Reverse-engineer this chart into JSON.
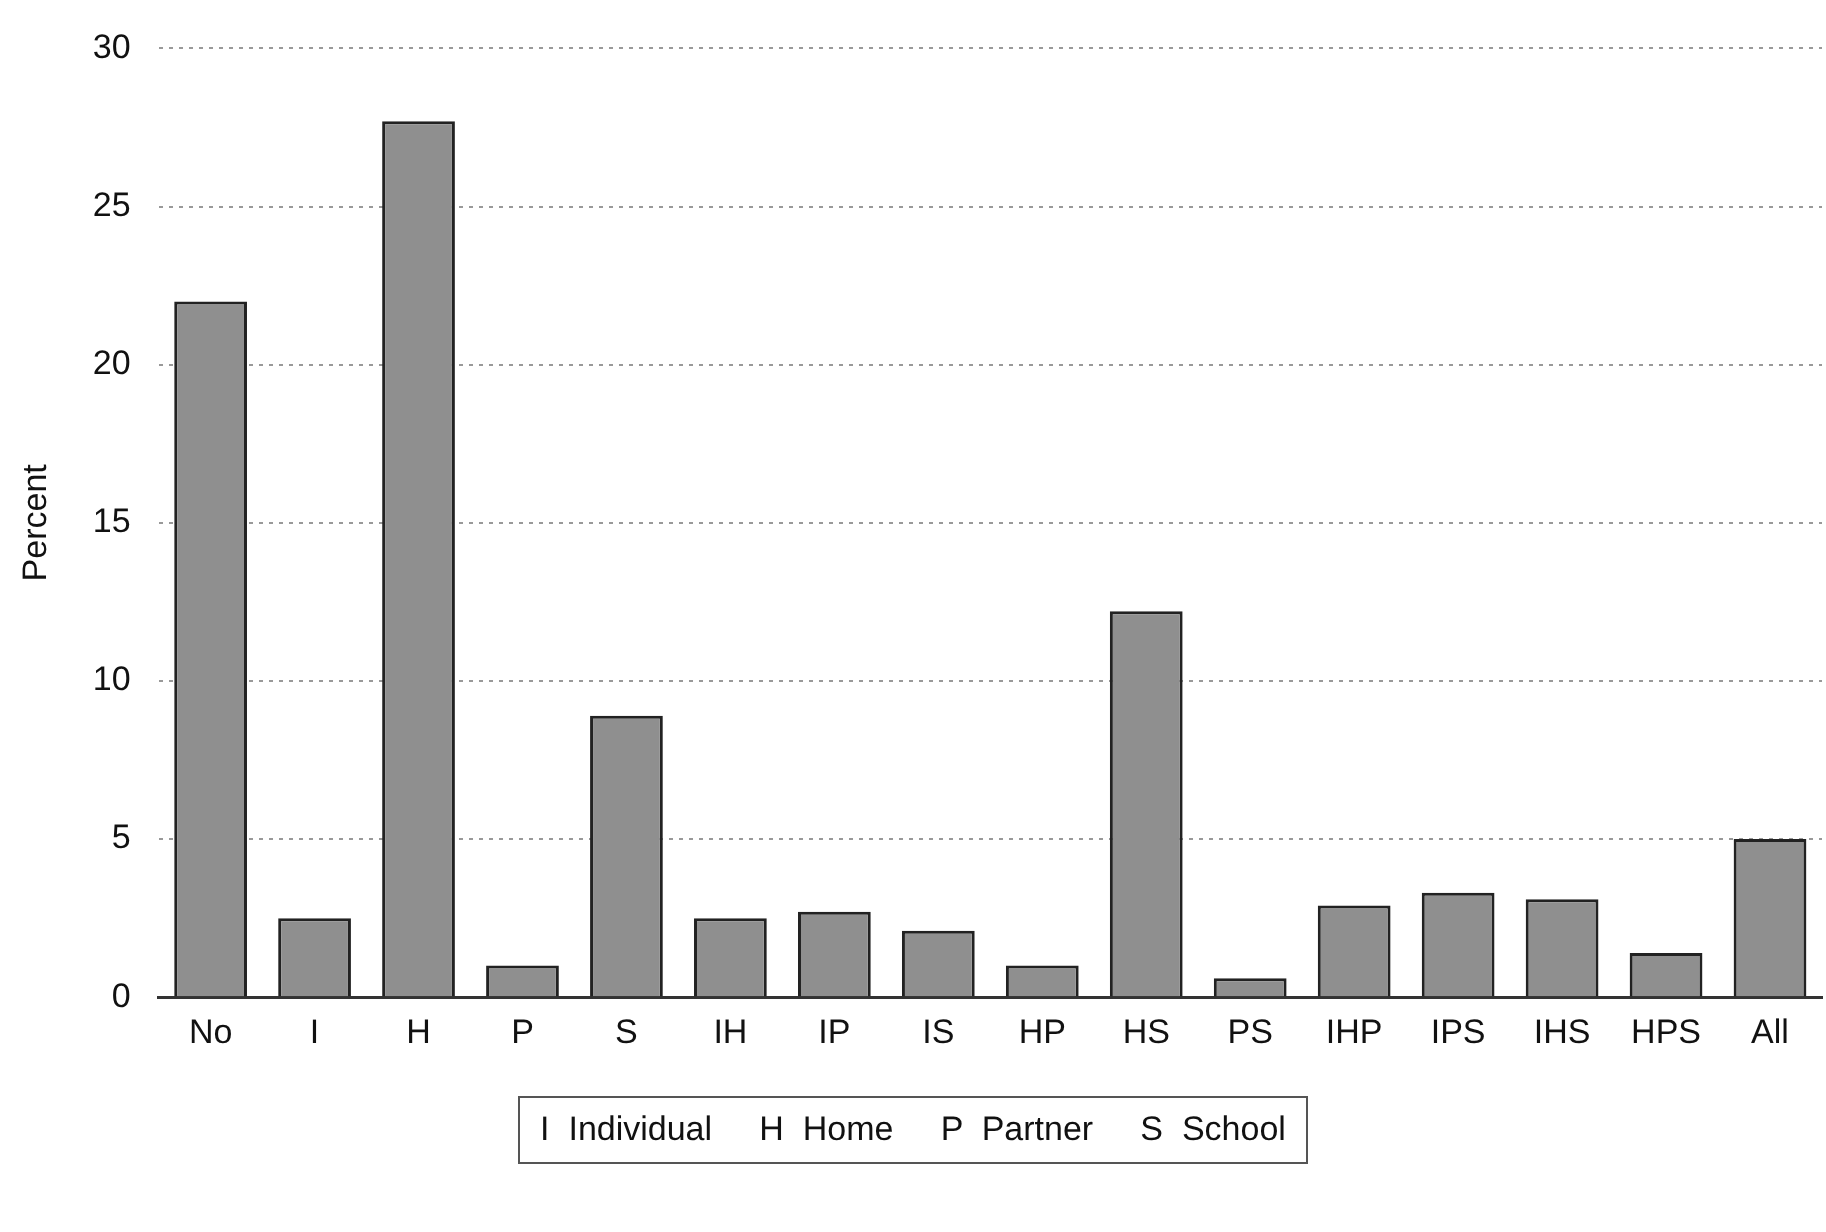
{
  "chart_data": {
    "type": "bar",
    "ylabel": "Percent",
    "categories": [
      "No",
      "I",
      "H",
      "P",
      "S",
      "IH",
      "IP",
      "IS",
      "HP",
      "HS",
      "PS",
      "IHP",
      "IPS",
      "IHS",
      "HPS",
      "All"
    ],
    "values": [
      22.0,
      2.5,
      27.7,
      1.0,
      8.9,
      2.5,
      2.7,
      2.1,
      1.0,
      12.2,
      0.6,
      2.9,
      3.3,
      3.1,
      1.4,
      5.0
    ],
    "color": "#8f8f8f",
    "ylim": [
      0,
      30
    ],
    "yticks": [
      0,
      5,
      10,
      15,
      20,
      25,
      30
    ],
    "grid": "y",
    "annotations": [
      "I  Individual     H  Home     P  Partner     S  School"
    ]
  }
}
